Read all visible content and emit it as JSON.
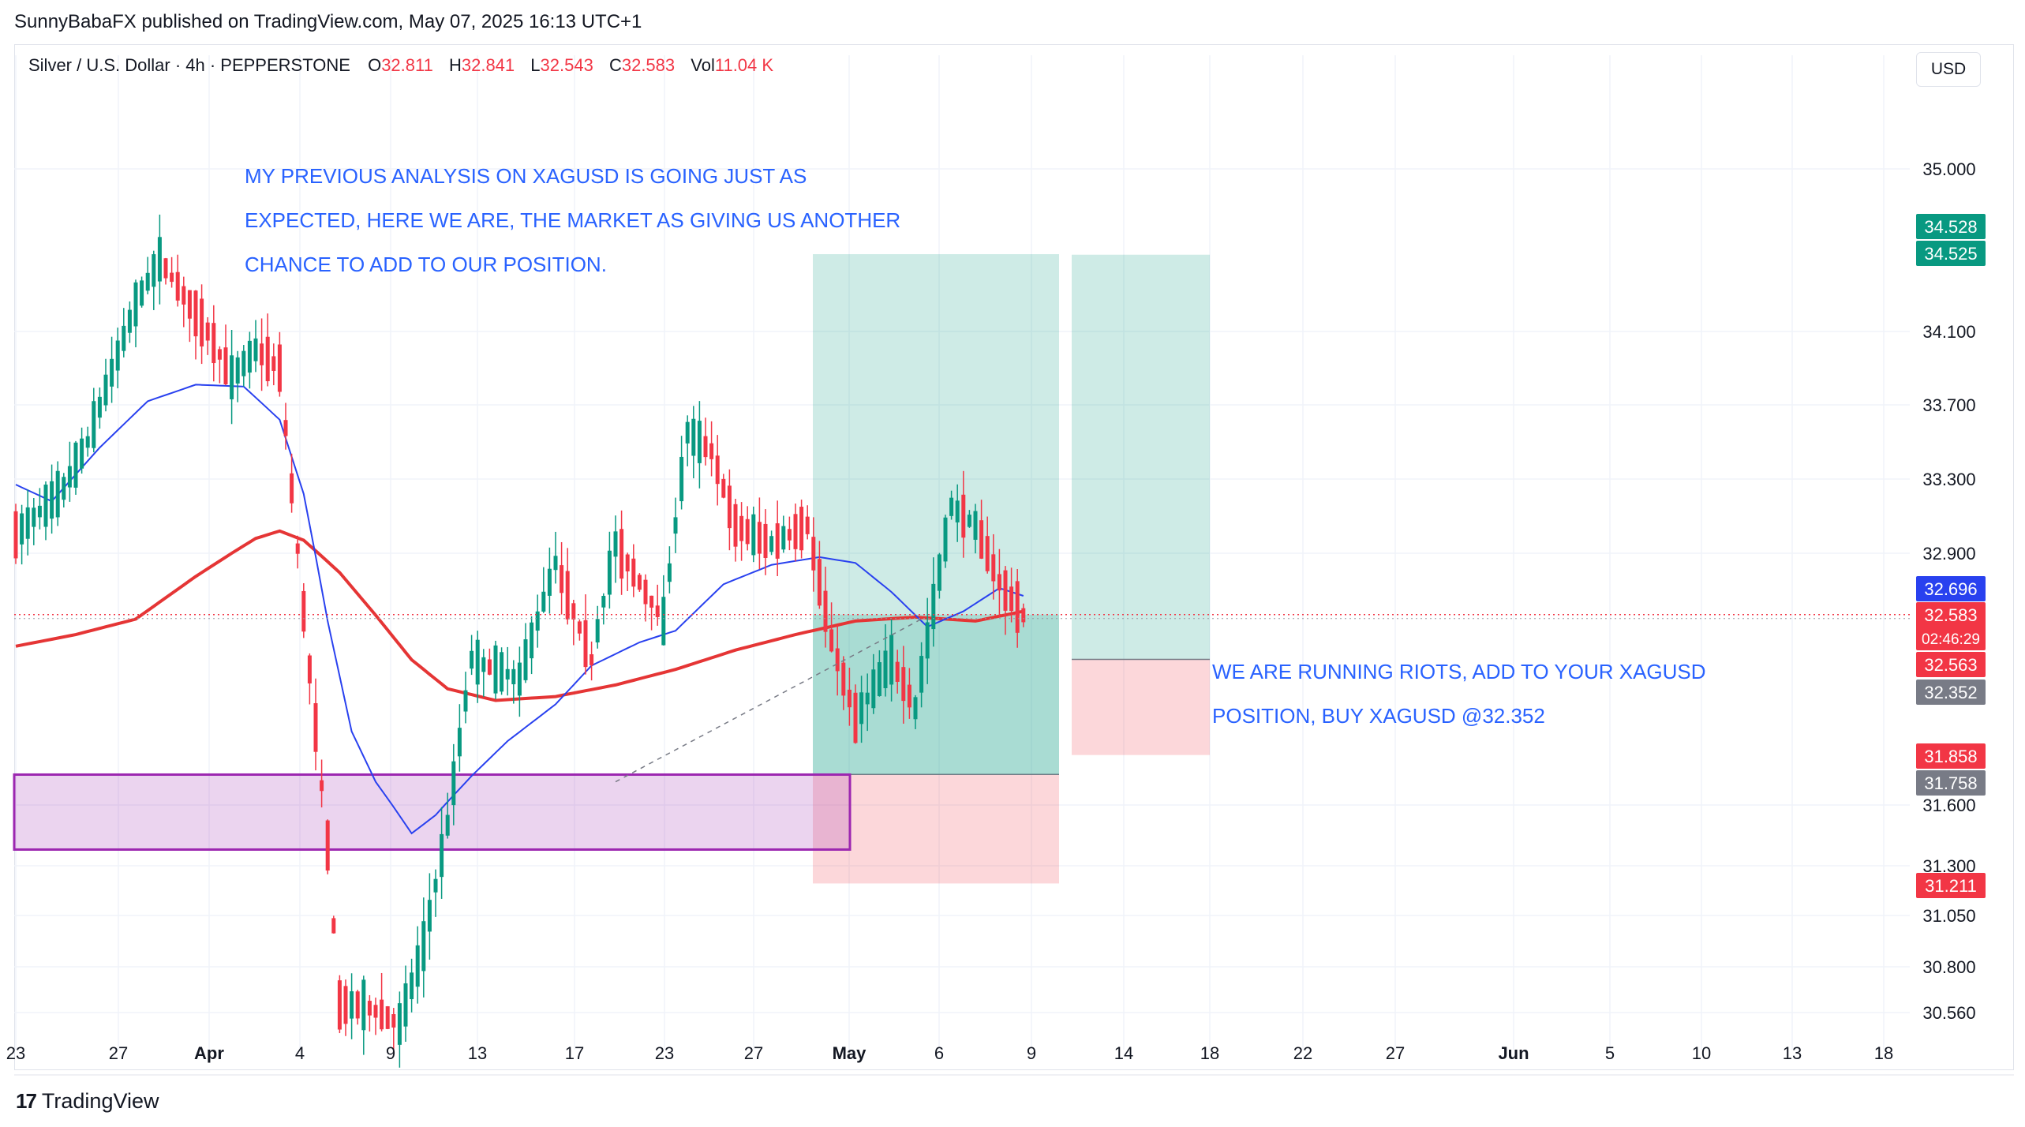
{
  "publisher": "SunnyBabaFX published on TradingView.com, May 07, 2025 16:13 UTC+1",
  "legend": {
    "symbol": "Silver / U.S. Dollar · 4h · PEPPERSTONE",
    "open_label": "O",
    "open": "32.811",
    "high_label": "H",
    "high": "32.841",
    "low_label": "L",
    "low": "32.543",
    "close_label": "C",
    "close": "32.583",
    "vol_label": "Vol",
    "vol": "11.04 K"
  },
  "currency": "USD",
  "footer": {
    "logo_mark": "17",
    "brand": "TradingView"
  },
  "colors": {
    "bull": "#089981",
    "bear": "#f23645",
    "ma_fast": "#2941ef",
    "ma_slow": "#e53535",
    "zone": "#9c27b0",
    "annotation": "#2962ff"
  },
  "chart_data": {
    "type": "candlestick",
    "timeframe": "4h",
    "y_axis": {
      "ticks": [
        "35.000",
        "34.100",
        "33.700",
        "33.300",
        "32.900",
        "31.600",
        "31.300",
        "31.050",
        "30.800",
        "30.560"
      ]
    },
    "x_axis": {
      "ticks": [
        "23",
        "27",
        "Apr",
        "4",
        "9",
        "13",
        "17",
        "23",
        "27",
        "May",
        "6",
        "9",
        "14",
        "18",
        "22",
        "27",
        "Jun",
        "5",
        "10",
        "13",
        "18"
      ]
    },
    "price_labels": [
      {
        "text": "34.528",
        "price": 34.528,
        "color": "#089981"
      },
      {
        "text": "34.525",
        "price": 34.525,
        "color": "#089981"
      },
      {
        "text": "32.696",
        "price": 32.696,
        "color": "#2941ef"
      },
      {
        "text": "32.583",
        "price": 32.583,
        "color": "#f23645"
      },
      {
        "text": "02:46:29",
        "price": 32.583,
        "color": "#f23645"
      },
      {
        "text": "32.563",
        "price": 32.563,
        "color": "#f23645"
      },
      {
        "text": "32.352",
        "price": 32.352,
        "color": "#787b86"
      },
      {
        "text": "31.858",
        "price": 31.858,
        "color": "#f23645"
      },
      {
        "text": "31.758",
        "price": 31.758,
        "color": "#787b86"
      },
      {
        "text": "31.211",
        "price": 31.211,
        "color": "#f23645"
      }
    ],
    "ma_fast_anchors": [
      [
        0,
        33.27
      ],
      [
        6,
        33.18
      ],
      [
        14,
        33.47
      ],
      [
        22,
        33.72
      ],
      [
        30,
        33.81
      ],
      [
        38,
        33.8
      ],
      [
        44,
        33.62
      ],
      [
        48,
        33.22
      ],
      [
        52,
        32.55
      ],
      [
        56,
        31.98
      ],
      [
        60,
        31.72
      ],
      [
        66,
        31.46
      ],
      [
        70,
        31.55
      ],
      [
        76,
        31.75
      ],
      [
        82,
        31.93
      ],
      [
        90,
        32.12
      ],
      [
        96,
        32.32
      ],
      [
        104,
        32.44
      ],
      [
        110,
        32.5
      ],
      [
        118,
        32.74
      ],
      [
        126,
        32.84
      ],
      [
        134,
        32.88
      ],
      [
        140,
        32.85
      ],
      [
        146,
        32.7
      ],
      [
        152,
        32.52
      ],
      [
        158,
        32.6
      ],
      [
        164,
        32.72
      ],
      [
        168,
        32.68
      ]
    ],
    "ma_slow_anchors": [
      [
        0,
        32.42
      ],
      [
        10,
        32.48
      ],
      [
        20,
        32.56
      ],
      [
        30,
        32.78
      ],
      [
        40,
        32.98
      ],
      [
        44,
        33.02
      ],
      [
        48,
        32.97
      ],
      [
        54,
        32.8
      ],
      [
        60,
        32.58
      ],
      [
        66,
        32.35
      ],
      [
        72,
        32.2
      ],
      [
        80,
        32.14
      ],
      [
        90,
        32.16
      ],
      [
        100,
        32.22
      ],
      [
        110,
        32.3
      ],
      [
        120,
        32.4
      ],
      [
        130,
        32.48
      ],
      [
        140,
        32.55
      ],
      [
        150,
        32.57
      ],
      [
        160,
        32.55
      ],
      [
        168,
        32.6
      ]
    ],
    "candle_anchors": [
      [
        0,
        33.0
      ],
      [
        8,
        33.25
      ],
      [
        12,
        33.5
      ],
      [
        20,
        34.25
      ],
      [
        24,
        34.5
      ],
      [
        32,
        34.1
      ],
      [
        36,
        33.85
      ],
      [
        40,
        34.0
      ],
      [
        44,
        33.9
      ],
      [
        48,
        32.6
      ],
      [
        52,
        31.4
      ],
      [
        54,
        30.6
      ],
      [
        58,
        30.6
      ],
      [
        64,
        30.5
      ],
      [
        68,
        30.9
      ],
      [
        72,
        31.5
      ],
      [
        76,
        32.35
      ],
      [
        84,
        32.25
      ],
      [
        90,
        32.85
      ],
      [
        96,
        32.35
      ],
      [
        100,
        32.95
      ],
      [
        104,
        32.75
      ],
      [
        108,
        32.55
      ],
      [
        112,
        33.55
      ],
      [
        116,
        33.45
      ],
      [
        120,
        33.05
      ],
      [
        126,
        32.95
      ],
      [
        132,
        33.05
      ],
      [
        136,
        32.45
      ],
      [
        140,
        32.05
      ],
      [
        146,
        32.35
      ],
      [
        150,
        32.1
      ],
      [
        156,
        33.15
      ],
      [
        160,
        33.05
      ],
      [
        164,
        32.75
      ],
      [
        168,
        32.58
      ]
    ],
    "positions": [
      {
        "kind": "long",
        "entry": 31.758,
        "target": 34.528,
        "stop": 31.211
      },
      {
        "kind": "long",
        "entry": 32.352,
        "target": 34.525,
        "stop": 31.858
      }
    ],
    "demand_zone": {
      "top": 31.757,
      "bottom": 31.38
    },
    "annotations": [
      [
        "MY PREVIOUS ANALYSIS ON XAGUSD IS GOING JUST AS",
        "EXPECTED, HERE WE ARE, THE MARKET AS GIVING US ANOTHER",
        "CHANCE TO ADD TO OUR POSITION."
      ],
      [
        "WE ARE RUNNING RIOTS, ADD TO YOUR XAGUSD",
        "POSITION, BUY XAGUSD @32.352"
      ]
    ]
  }
}
